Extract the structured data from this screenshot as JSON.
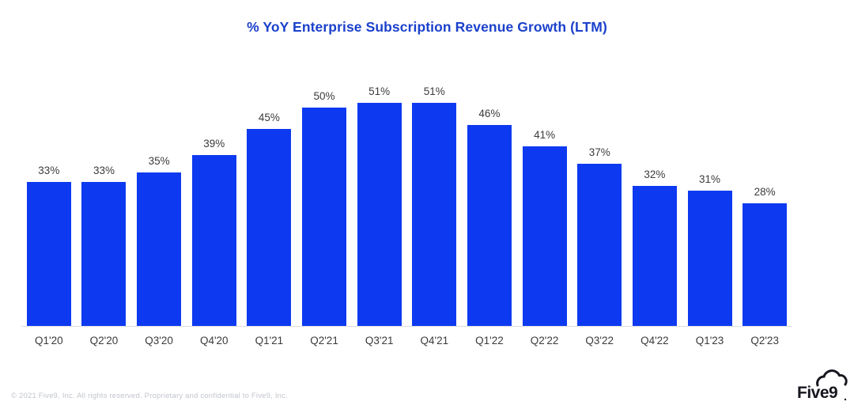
{
  "slide": {
    "title": "% YoY Enterprise Subscription Revenue Growth (LTM)",
    "footer": "© 2021 Five9, Inc. All rights reserved. Proprietary and confidential to Five9, Inc.",
    "logo_text": "Five9"
  },
  "colors": {
    "bar": "#0d3af0",
    "title": "#1b41cc",
    "data_label": "#3b3b3b",
    "axis_label": "#3b3b3b",
    "baseline": "#dcdcdc",
    "footer": "#c2c5cc",
    "logo": "#17171f",
    "background": "#ffffff"
  },
  "chart_data": {
    "type": "bar",
    "title": "% YoY Enterprise Subscription Revenue Growth (LTM)",
    "categories": [
      "Q1'20",
      "Q2'20",
      "Q3'20",
      "Q4'20",
      "Q1'21",
      "Q2'21",
      "Q3'21",
      "Q4'21",
      "Q1'22",
      "Q2'22",
      "Q3'22",
      "Q4'22",
      "Q1'23",
      "Q2'23"
    ],
    "values": [
      33,
      33,
      35,
      39,
      45,
      50,
      51,
      51,
      46,
      41,
      37,
      32,
      31,
      28
    ],
    "value_suffix": "%",
    "xlabel": "",
    "ylabel": "",
    "ylim": [
      0,
      55
    ],
    "grid": false,
    "legend": false,
    "data_labels": true,
    "bar_color": "#0d3af0"
  }
}
